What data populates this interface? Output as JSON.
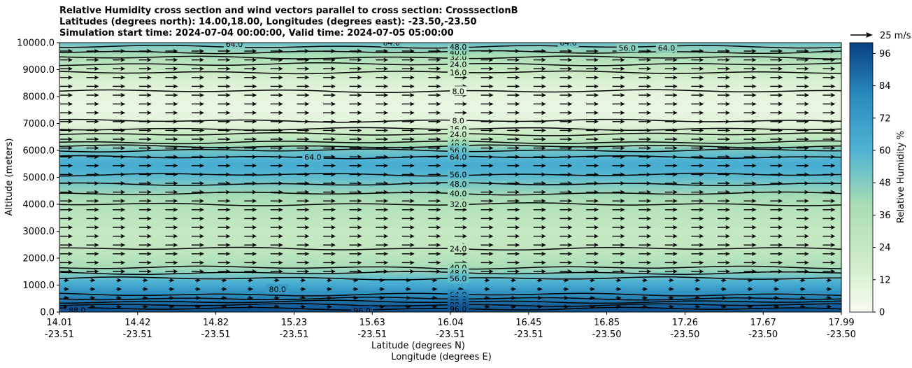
{
  "chart_data": {
    "type": "heatmap",
    "title_lines": [
      "Relative Humidity cross section and wind vectors parallel to cross section: CrosssectionB",
      "Latitudes (degrees north): 14.00,18.00, Longitudes (degrees east): -23.50,-23.50",
      "Simulation start time: 2024-07-04 00:00:00, Valid time: 2024-07-05 05:00:00"
    ],
    "xlabel_lat": "Latitude (degrees N)",
    "xlabel_lon": "Longitude (degrees E)",
    "ylabel": "Altitude (meters)",
    "xlim": [
      14.01,
      17.99
    ],
    "ylim": [
      0,
      10000
    ],
    "x_ticks": [
      {
        "lat": "14.01",
        "lon": "-23.51"
      },
      {
        "lat": "14.42",
        "lon": "-23.51"
      },
      {
        "lat": "14.82",
        "lon": "-23.51"
      },
      {
        "lat": "15.23",
        "lon": "-23.51"
      },
      {
        "lat": "15.63",
        "lon": "-23.51"
      },
      {
        "lat": "16.04",
        "lon": "-23.51"
      },
      {
        "lat": "16.45",
        "lon": "-23.51"
      },
      {
        "lat": "16.85",
        "lon": "-23.50"
      },
      {
        "lat": "17.26",
        "lon": "-23.50"
      },
      {
        "lat": "17.67",
        "lon": "-23.50"
      },
      {
        "lat": "17.99",
        "lon": "-23.50"
      }
    ],
    "y_ticks": [
      "0.0",
      "1000.0",
      "2000.0",
      "3000.0",
      "4000.0",
      "5000.0",
      "6000.0",
      "7000.0",
      "8000.0",
      "9000.0",
      "10000.0"
    ],
    "y_tick_values": [
      0,
      1000,
      2000,
      3000,
      4000,
      5000,
      6000,
      7000,
      8000,
      9000,
      10000
    ],
    "colorbar": {
      "label": "Relative Humidity %",
      "ticks": [
        0,
        12,
        24,
        36,
        48,
        60,
        72,
        84,
        96
      ],
      "range": [
        0,
        100
      ],
      "color_low": "#f7fcf0",
      "color_mid": "#7bccc4",
      "color_high": "#084081"
    },
    "quiver_key": {
      "label": "25 m/s",
      "speed": 25
    },
    "rh_profile": [
      {
        "alt": 0,
        "rh": 97
      },
      {
        "alt": 300,
        "rh": 90
      },
      {
        "alt": 700,
        "rh": 78
      },
      {
        "alt": 1100,
        "rh": 62
      },
      {
        "alt": 1500,
        "rh": 46
      },
      {
        "alt": 1900,
        "rh": 34
      },
      {
        "alt": 2400,
        "rh": 26
      },
      {
        "alt": 3000,
        "rh": 24
      },
      {
        "alt": 3800,
        "rh": 32
      },
      {
        "alt": 4400,
        "rh": 42
      },
      {
        "alt": 5000,
        "rh": 56
      },
      {
        "alt": 5500,
        "rh": 64
      },
      {
        "alt": 6000,
        "rh": 52
      },
      {
        "alt": 6500,
        "rh": 26
      },
      {
        "alt": 7000,
        "rh": 10
      },
      {
        "alt": 7600,
        "rh": 7
      },
      {
        "alt": 8300,
        "rh": 10
      },
      {
        "alt": 8800,
        "rh": 18
      },
      {
        "alt": 9300,
        "rh": 32
      },
      {
        "alt": 9700,
        "rh": 44
      },
      {
        "alt": 10000,
        "rh": 52
      }
    ],
    "contour_levels": [
      {
        "level": 8.0,
        "alt": 8200,
        "label": "8.0"
      },
      {
        "level": 8.0,
        "alt": 7100,
        "label": "8.0"
      },
      {
        "level": 16.0,
        "alt": 8900,
        "label": "16.0"
      },
      {
        "level": 16.0,
        "alt": 6800,
        "label": "16.0"
      },
      {
        "level": 24.0,
        "alt": 9200,
        "label": "24.0"
      },
      {
        "level": 24.0,
        "alt": 6600,
        "label": "24.0"
      },
      {
        "level": 24.0,
        "alt": 2350,
        "label": "24.0"
      },
      {
        "level": 32.0,
        "alt": 9450,
        "label": "32.0"
      },
      {
        "level": 32.0,
        "alt": 4000,
        "label": "32.0"
      },
      {
        "level": 40.0,
        "alt": 9650,
        "label": "40.0"
      },
      {
        "level": 40.0,
        "alt": 6300,
        "label": "40.0"
      },
      {
        "level": 40.0,
        "alt": 4400,
        "label": "40.0"
      },
      {
        "level": 40.0,
        "alt": 1650,
        "label": "40.0"
      },
      {
        "level": 48.0,
        "alt": 9850,
        "label": "48.0"
      },
      {
        "level": 48.0,
        "alt": 6150,
        "label": "48.0"
      },
      {
        "level": 48.0,
        "alt": 4750,
        "label": "48.0"
      },
      {
        "level": 48.0,
        "alt": 1450,
        "label": "48.0"
      },
      {
        "level": 56.0,
        "alt": 6000,
        "label": "56.0"
      },
      {
        "level": 56.0,
        "alt": 5100,
        "label": "56.0"
      },
      {
        "level": 56.0,
        "alt": 1250,
        "label": "56.0"
      },
      {
        "level": 64.0,
        "alt": 5750,
        "label": "64.0"
      },
      {
        "level": 64.0,
        "alt": 650,
        "label": "64.0"
      },
      {
        "level": 72.0,
        "alt": 500,
        "label": "72.0"
      },
      {
        "level": 80.0,
        "alt": 380,
        "label": "80.0"
      },
      {
        "level": 88.0,
        "alt": 260,
        "label": "88.0"
      },
      {
        "level": 96.0,
        "alt": 120,
        "label": "96.0"
      }
    ],
    "extra_contour_labels": [
      {
        "x": 14.9,
        "alt": 9950,
        "label": "64.0"
      },
      {
        "x": 15.7,
        "alt": 10000,
        "label": "64.0"
      },
      {
        "x": 16.6,
        "alt": 10000,
        "label": "64.0"
      },
      {
        "x": 16.9,
        "alt": 9800,
        "label": "56.0"
      },
      {
        "x": 17.1,
        "alt": 9800,
        "label": "64.0"
      },
      {
        "x": 15.3,
        "alt": 5750,
        "label": "64.0"
      },
      {
        "x": 15.12,
        "alt": 850,
        "label": "80.0"
      },
      {
        "x": 15.55,
        "alt": 50,
        "label": "96.0"
      },
      {
        "x": 14.1,
        "alt": 60,
        "label": "88.0"
      }
    ]
  }
}
